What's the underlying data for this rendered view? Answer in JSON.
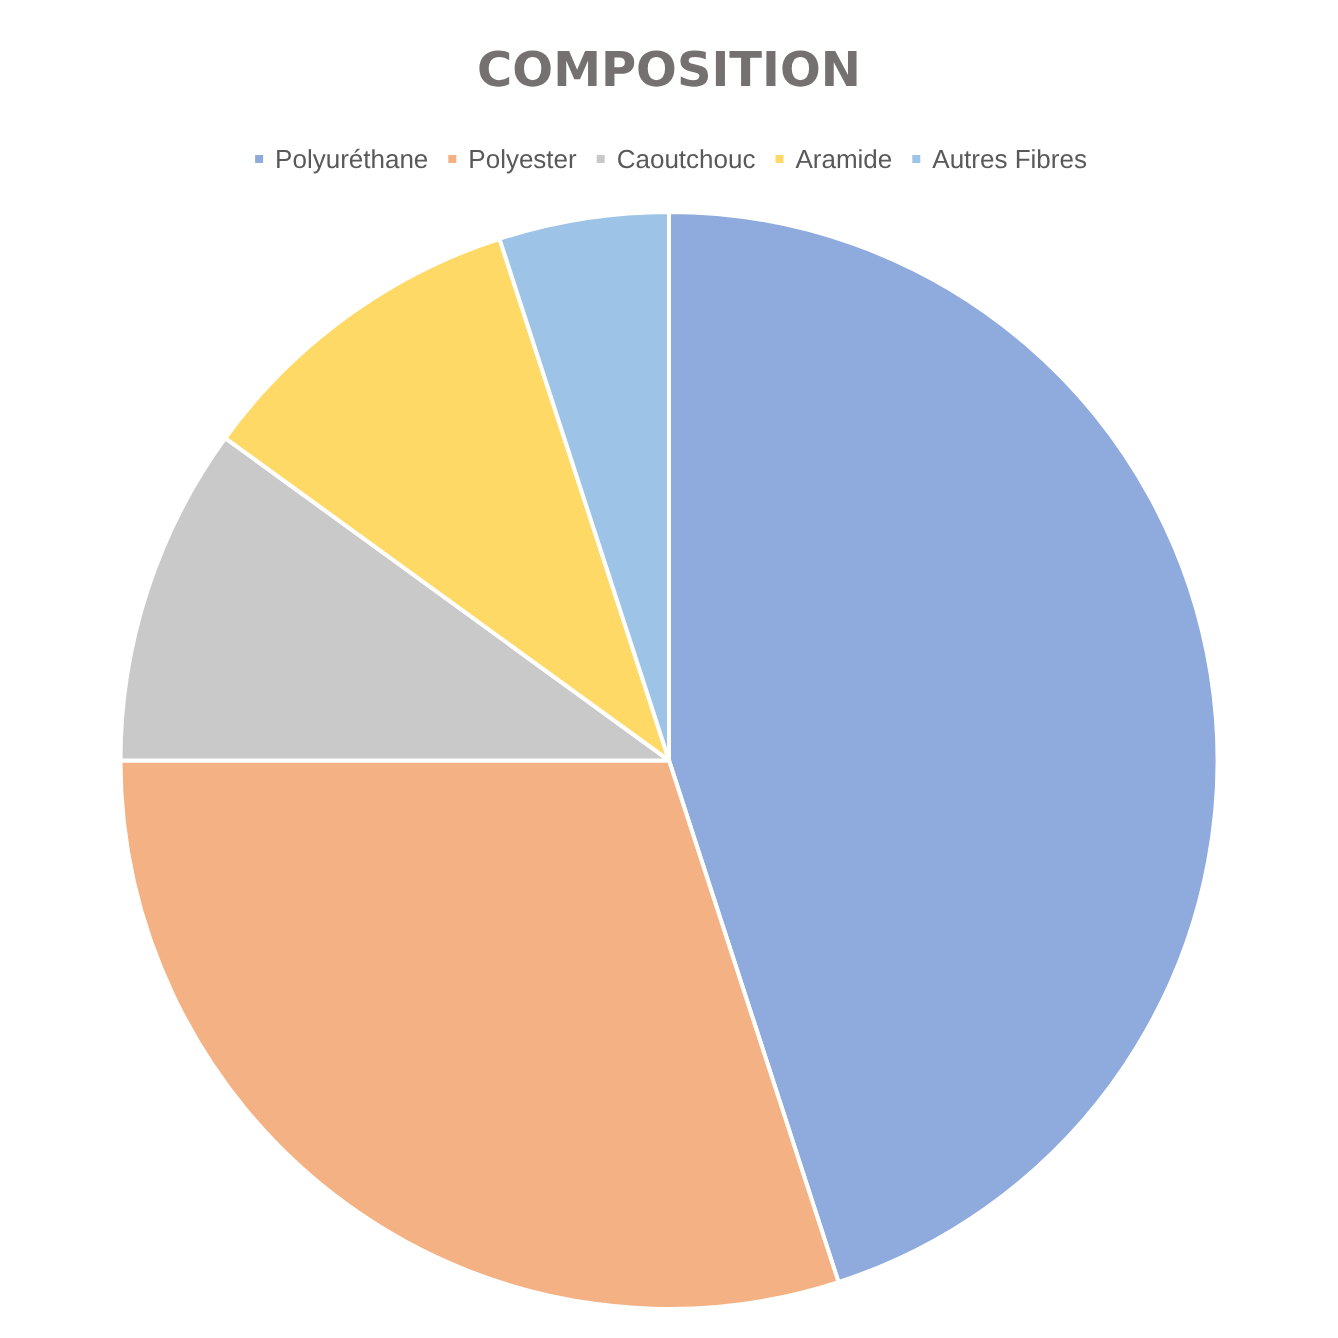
{
  "chart_data": {
    "type": "pie",
    "title": "COMPOSITION",
    "categories": [
      "Polyuréthane",
      "Polyester",
      "Caoutchouc",
      "Aramide",
      "Autres Fibres"
    ],
    "values": [
      45,
      30,
      10,
      10,
      5
    ],
    "colors": [
      "#8faadc",
      "#f4b183",
      "#c9c9c9",
      "#ffd966",
      "#9dc3e6"
    ],
    "legend": "top"
  }
}
